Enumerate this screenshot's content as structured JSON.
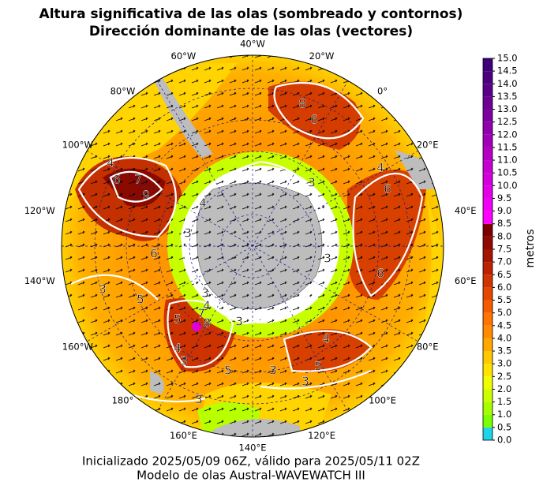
{
  "title": [
    "Altura significativa de las olas (sombreado y contornos)",
    "Dirección dominante de las olas (vectores)"
  ],
  "longitudes": [
    "40°W",
    "20°W",
    "0°",
    "20°E",
    "40°E",
    "60°E",
    "80°E",
    "100°E",
    "120°E",
    "140°E",
    "160°E",
    "180°",
    "160°W",
    "140°W",
    "120°W",
    "100°W",
    "80°W",
    "60°W"
  ],
  "contour_labels": [
    "8",
    "6",
    "4",
    "6",
    "7",
    "9",
    "4",
    "6",
    "4",
    "3",
    "3",
    "3",
    "6",
    "6",
    "5",
    "3",
    "3",
    "4",
    "5",
    "7",
    "8",
    "3",
    "4",
    "5",
    "3",
    "3",
    "5",
    "4",
    "3",
    "3"
  ],
  "colorbar": {
    "label": "metros",
    "lim": [
      0,
      15
    ],
    "ticks": [
      {
        "value": 0,
        "label": "0.0"
      },
      {
        "value": 0.5,
        "label": "0.5"
      },
      {
        "value": 1,
        "label": "1.0"
      },
      {
        "value": 1.5,
        "label": "1.5"
      },
      {
        "value": 2,
        "label": "2.0"
      },
      {
        "value": 2.5,
        "label": "2.5"
      },
      {
        "value": 3,
        "label": "3.0"
      },
      {
        "value": 3.5,
        "label": "3.5"
      },
      {
        "value": 4,
        "label": "4.0"
      },
      {
        "value": 4.5,
        "label": "4.5"
      },
      {
        "value": 5,
        "label": "5.0"
      },
      {
        "value": 5.5,
        "label": "5.5"
      },
      {
        "value": 6,
        "label": "6.0"
      },
      {
        "value": 6.5,
        "label": "6.5"
      },
      {
        "value": 7,
        "label": "7.0"
      },
      {
        "value": 7.5,
        "label": "7.5"
      },
      {
        "value": 8,
        "label": "8.0"
      },
      {
        "value": 8.5,
        "label": "8.5"
      },
      {
        "value": 9,
        "label": "9.0"
      },
      {
        "value": 9.5,
        "label": "9.5"
      },
      {
        "value": 10,
        "label": "10.0"
      },
      {
        "value": 10.5,
        "label": "10.5"
      },
      {
        "value": 11,
        "label": "11.0"
      },
      {
        "value": 11.5,
        "label": "11.5"
      },
      {
        "value": 12,
        "label": "12.0"
      },
      {
        "value": 12.5,
        "label": "12.5"
      },
      {
        "value": 13,
        "label": "13.0"
      },
      {
        "value": 13.5,
        "label": "13.5"
      },
      {
        "value": 14,
        "label": "14.0"
      },
      {
        "value": 14.5,
        "label": "14.5"
      },
      {
        "value": 15,
        "label": "15.0"
      }
    ],
    "colors": [
      "#1ed4e8",
      "#7cff00",
      "#a6ff00",
      "#ccff00",
      "#f0ff00",
      "#ffe400",
      "#ffc800",
      "#ffa800",
      "#ff8c00",
      "#ff7400",
      "#f45c00",
      "#e44800",
      "#d03400",
      "#bc2200",
      "#a41400",
      "#900800",
      "#7c0000",
      "#ff00ff",
      "#f000f4",
      "#e200e8",
      "#d400dc",
      "#c600d0",
      "#b400c4",
      "#a200b8",
      "#9000ac",
      "#7e00a0",
      "#6c0094",
      "#5a0088",
      "#4c0080",
      "#3e0078"
    ]
  },
  "footer": [
    "Inicializado 2025/05/09 06Z, válido para 2025/05/11 02Z",
    "Modelo de olas Austral-WAVEWATCH III"
  ]
}
